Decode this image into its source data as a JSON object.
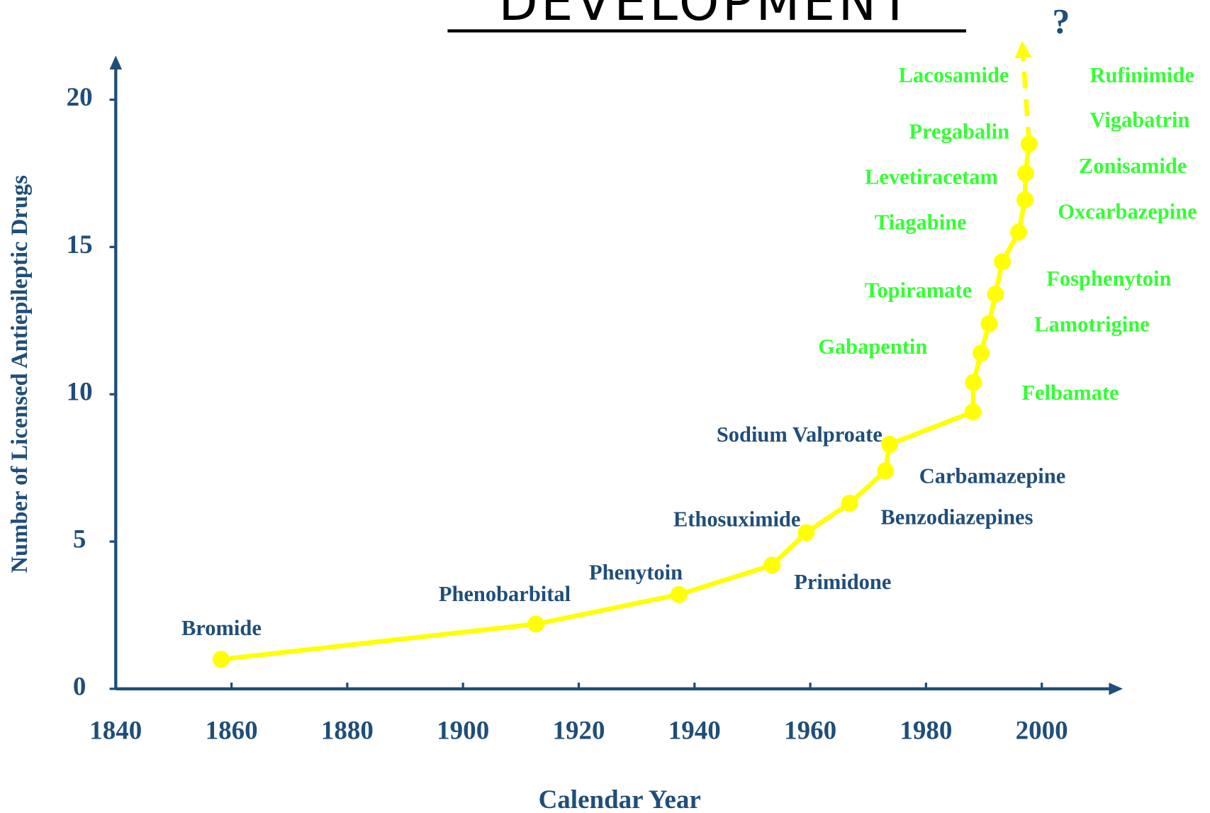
{
  "chart_data": {
    "type": "line",
    "title": "DEVELOPMENT",
    "x_label": "Calendar Year",
    "y_label": "Number of Licensed Antiepileptic Drugs",
    "xlim": [
      1840,
      2014
    ],
    "ylim": [
      0,
      21.5
    ],
    "xticks": [
      1840,
      1860,
      1880,
      1900,
      1920,
      1940,
      1960,
      1980,
      2000
    ],
    "yticks": [
      0,
      5,
      10,
      15,
      20
    ],
    "color": "#ffff00",
    "axis_color": "#1f4e79",
    "series": [
      {
        "x": [
          1858.2,
          1912.6,
          1937.3,
          1953.4,
          1959.3,
          1966.8,
          1973,
          1973.7,
          1988.1,
          1988.2,
          1989.5,
          1990.9,
          1992,
          1993.2,
          1996,
          1997.1,
          1997.2,
          1997.8
        ],
        "values": [
          1,
          2.2,
          3.2,
          4.2,
          5.3,
          6.3,
          7.4,
          8.3,
          9.4,
          10.4,
          11.4,
          12.4,
          13.4,
          14.5,
          15.5,
          16.6,
          17.5,
          18.5
        ]
      }
    ],
    "projection": {
      "x": [
        1997.8,
        1996.6
      ],
      "values": [
        18.5,
        22
      ]
    },
    "projection_label": "?",
    "annotations": [
      {
        "text": "Bromide",
        "color": "#1f4e79"
      },
      {
        "text": "Phenobarbital",
        "color": "#1f4e79"
      },
      {
        "text": "Phenytoin",
        "color": "#1f4e79"
      },
      {
        "text": "Primidone",
        "color": "#1f4e79"
      },
      {
        "text": "Ethosuximide",
        "color": "#1f4e79"
      },
      {
        "text": "Benzodiazepines",
        "color": "#1f4e79"
      },
      {
        "text": "Carbamazepine",
        "color": "#1f4e79"
      },
      {
        "text": "Sodium Valproate",
        "color": "#1f4e79"
      },
      {
        "text": "Felbamate",
        "color": "#33ff33"
      },
      {
        "text": "Gabapentin",
        "color": "#33ff33"
      },
      {
        "text": "Lamotrigine",
        "color": "#33ff33"
      },
      {
        "text": "Topiramate",
        "color": "#33ff33"
      },
      {
        "text": "Fosphenytoin",
        "color": "#33ff33"
      },
      {
        "text": "Tiagabine",
        "color": "#33ff33"
      },
      {
        "text": "Oxcarbazepine",
        "color": "#33ff33"
      },
      {
        "text": "Levetiracetam",
        "color": "#33ff33"
      },
      {
        "text": "Zonisamide",
        "color": "#33ff33"
      },
      {
        "text": "Pregabalin",
        "color": "#33ff33"
      },
      {
        "text": "Vigabatrin",
        "color": "#33ff33"
      },
      {
        "text": "Lacosamide",
        "color": "#33ff33"
      },
      {
        "text": "Rufinimide",
        "color": "#33ff33"
      }
    ]
  }
}
